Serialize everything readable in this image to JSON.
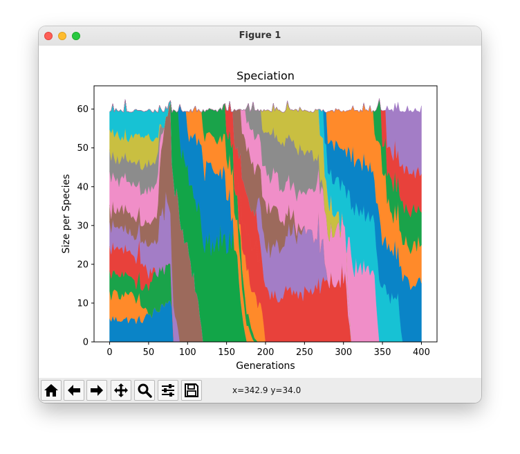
{
  "window": {
    "title": "Figure 1"
  },
  "toolbar": {
    "buttons": [
      {
        "name": "home-button",
        "icon": "home-icon"
      },
      {
        "name": "back-button",
        "icon": "arrow-left-icon"
      },
      {
        "name": "forward-button",
        "icon": "arrow-right-icon"
      },
      {
        "name": "pan-button",
        "icon": "move-icon"
      },
      {
        "name": "zoom-button",
        "icon": "magnifier-icon"
      },
      {
        "name": "configure-subplots-button",
        "icon": "sliders-icon"
      },
      {
        "name": "save-button",
        "icon": "floppy-disk-icon"
      }
    ],
    "coordinates": "x=342.9 y=34.0"
  },
  "chart_data": {
    "type": "area",
    "title": "Speciation",
    "xlabel": "Generations",
    "ylabel": "Size per Species",
    "xlim": [
      -20,
      420
    ],
    "ylim": [
      0,
      66
    ],
    "xticks": [
      "0",
      "50",
      "100",
      "150",
      "200",
      "250",
      "300",
      "350",
      "400"
    ],
    "yticks": [
      "0",
      "10",
      "20",
      "30",
      "40",
      "50",
      "60"
    ],
    "grid": false,
    "legend": "none",
    "total_population": 60,
    "palette": [
      "#1f77b4",
      "#ff7f0e",
      "#2ca02c",
      "#d62728",
      "#9467bd",
      "#8c564b",
      "#e377c2",
      "#7f7f7f",
      "#bcbd22",
      "#17becf"
    ],
    "species": [
      {
        "color": "#0a84c7",
        "start": 0,
        "end": 80,
        "vals": [
          [
            0,
            6
          ],
          [
            20,
            6
          ],
          [
            40,
            5
          ],
          [
            60,
            6
          ],
          [
            80,
            8
          ]
        ]
      },
      {
        "color": "#ff8a2a",
        "start": 0,
        "end": 50,
        "vals": [
          [
            0,
            7
          ],
          [
            20,
            7
          ],
          [
            40,
            4
          ],
          [
            50,
            0
          ]
        ]
      },
      {
        "color": "#1aa34a",
        "start": 0,
        "end": 78,
        "vals": [
          [
            0,
            5
          ],
          [
            20,
            5
          ],
          [
            40,
            4
          ],
          [
            60,
            7
          ],
          [
            78,
            6
          ]
        ]
      },
      {
        "color": "#e8413b",
        "start": 0,
        "end": 60,
        "vals": [
          [
            0,
            6
          ],
          [
            20,
            7
          ],
          [
            40,
            6
          ],
          [
            60,
            0
          ]
        ]
      },
      {
        "color": "#a37dc6",
        "start": 0,
        "end": 90,
        "vals": [
          [
            0,
            6
          ],
          [
            20,
            5
          ],
          [
            40,
            5
          ],
          [
            60,
            6
          ],
          [
            75,
            13
          ],
          [
            90,
            0
          ]
        ]
      },
      {
        "color": "#9c6a5c",
        "start": 0,
        "end": 120,
        "vals": [
          [
            0,
            4
          ],
          [
            20,
            5
          ],
          [
            40,
            4
          ],
          [
            60,
            5
          ],
          [
            75,
            20
          ],
          [
            100,
            25
          ],
          [
            120,
            0
          ]
        ]
      },
      {
        "color": "#f08ec8",
        "start": 0,
        "end": 70,
        "vals": [
          [
            0,
            8
          ],
          [
            20,
            8
          ],
          [
            40,
            7
          ],
          [
            60,
            7
          ],
          [
            70,
            0
          ]
        ]
      },
      {
        "color": "#8c8c8c",
        "start": 0,
        "end": 70,
        "vals": [
          [
            0,
            5
          ],
          [
            20,
            5
          ],
          [
            40,
            6
          ],
          [
            60,
            5
          ],
          [
            70,
            0
          ]
        ]
      },
      {
        "color": "#c9bf41",
        "start": 0,
        "end": 65,
        "vals": [
          [
            0,
            7
          ],
          [
            20,
            6
          ],
          [
            40,
            7
          ],
          [
            60,
            4
          ],
          [
            65,
            0
          ]
        ]
      },
      {
        "color": "#17c2d4",
        "start": 0,
        "end": 80,
        "vals": [
          [
            0,
            6
          ],
          [
            20,
            7
          ],
          [
            40,
            6
          ],
          [
            60,
            5
          ],
          [
            80,
            0
          ]
        ]
      },
      {
        "color": "#12a548",
        "start": 80,
        "end": 175,
        "vals": [
          [
            80,
            12
          ],
          [
            100,
            19
          ],
          [
            130,
            20
          ],
          [
            160,
            20
          ],
          [
            175,
            0
          ]
        ]
      },
      {
        "color": "#0a84c7",
        "start": 90,
        "end": 160,
        "vals": [
          [
            90,
            8
          ],
          [
            110,
            14
          ],
          [
            130,
            16
          ],
          [
            150,
            12
          ],
          [
            160,
            0
          ]
        ]
      },
      {
        "color": "#ff8a2a",
        "start": 100,
        "end": 185,
        "vals": [
          [
            100,
            6
          ],
          [
            130,
            6
          ],
          [
            160,
            9
          ],
          [
            185,
            0
          ]
        ]
      },
      {
        "color": "#1aa34a",
        "start": 120,
        "end": 190,
        "vals": [
          [
            120,
            5
          ],
          [
            150,
            6
          ],
          [
            170,
            4
          ],
          [
            190,
            0
          ]
        ]
      },
      {
        "color": "#ff8a2a",
        "start": 165,
        "end": 200,
        "vals": [
          [
            165,
            0
          ],
          [
            175,
            8
          ],
          [
            195,
            8
          ],
          [
            200,
            0
          ]
        ]
      },
      {
        "color": "#e8413b",
        "start": 160,
        "end": 310,
        "vals": [
          [
            160,
            4
          ],
          [
            190,
            10
          ],
          [
            210,
            10
          ],
          [
            240,
            9
          ],
          [
            270,
            11
          ],
          [
            300,
            18
          ],
          [
            310,
            0
          ]
        ]
      },
      {
        "color": "#e8413b",
        "start": 150,
        "end": 200,
        "vals": [
          [
            150,
            5
          ],
          [
            170,
            8
          ],
          [
            190,
            7
          ],
          [
            200,
            0
          ]
        ]
      },
      {
        "color": "#a37dc6",
        "start": 190,
        "end": 280,
        "vals": [
          [
            190,
            8
          ],
          [
            220,
            11
          ],
          [
            250,
            12
          ],
          [
            270,
            10
          ],
          [
            280,
            0
          ]
        ]
      },
      {
        "color": "#9c6a5c",
        "start": 160,
        "end": 250,
        "vals": [
          [
            160,
            8
          ],
          [
            190,
            9
          ],
          [
            220,
            6
          ],
          [
            250,
            0
          ]
        ]
      },
      {
        "color": "#f08ec8",
        "start": 170,
        "end": 310,
        "vals": [
          [
            170,
            5
          ],
          [
            200,
            7
          ],
          [
            240,
            6
          ],
          [
            270,
            10
          ],
          [
            300,
            14
          ],
          [
            310,
            0
          ]
        ]
      },
      {
        "color": "#8c8c8c",
        "start": 175,
        "end": 275,
        "vals": [
          [
            175,
            3
          ],
          [
            200,
            8
          ],
          [
            240,
            9
          ],
          [
            260,
            7
          ],
          [
            275,
            0
          ]
        ]
      },
      {
        "color": "#c9bf41",
        "start": 195,
        "end": 300,
        "vals": [
          [
            195,
            4
          ],
          [
            220,
            6
          ],
          [
            250,
            8
          ],
          [
            280,
            8
          ],
          [
            300,
            0
          ]
        ]
      },
      {
        "color": "#f08ec8",
        "start": 305,
        "end": 345,
        "vals": [
          [
            305,
            15
          ],
          [
            320,
            16
          ],
          [
            340,
            16
          ],
          [
            345,
            0
          ]
        ]
      },
      {
        "color": "#17c2d4",
        "start": 270,
        "end": 375,
        "vals": [
          [
            270,
            5
          ],
          [
            300,
            10
          ],
          [
            330,
            12
          ],
          [
            345,
            10
          ],
          [
            370,
            12
          ],
          [
            375,
            0
          ]
        ]
      },
      {
        "color": "#0a84c7",
        "start": 275,
        "end": 400,
        "vals": [
          [
            275,
            6
          ],
          [
            300,
            10
          ],
          [
            330,
            10
          ],
          [
            350,
            9
          ],
          [
            375,
            14
          ],
          [
            400,
            15
          ]
        ]
      },
      {
        "color": "#ff8a2a",
        "start": 280,
        "end": 400,
        "vals": [
          [
            280,
            8
          ],
          [
            310,
            9
          ],
          [
            340,
            12
          ],
          [
            360,
            10
          ],
          [
            380,
            8
          ],
          [
            400,
            10
          ]
        ]
      },
      {
        "color": "#1aa34a",
        "start": 340,
        "end": 400,
        "vals": [
          [
            340,
            5
          ],
          [
            360,
            7
          ],
          [
            380,
            8
          ],
          [
            400,
            9
          ]
        ]
      },
      {
        "color": "#e8413b",
        "start": 350,
        "end": 400,
        "vals": [
          [
            350,
            6
          ],
          [
            370,
            8
          ],
          [
            400,
            10
          ]
        ]
      },
      {
        "color": "#a37dc6",
        "start": 355,
        "end": 400,
        "vals": [
          [
            355,
            8
          ],
          [
            375,
            13
          ],
          [
            400,
            16
          ]
        ]
      }
    ]
  }
}
